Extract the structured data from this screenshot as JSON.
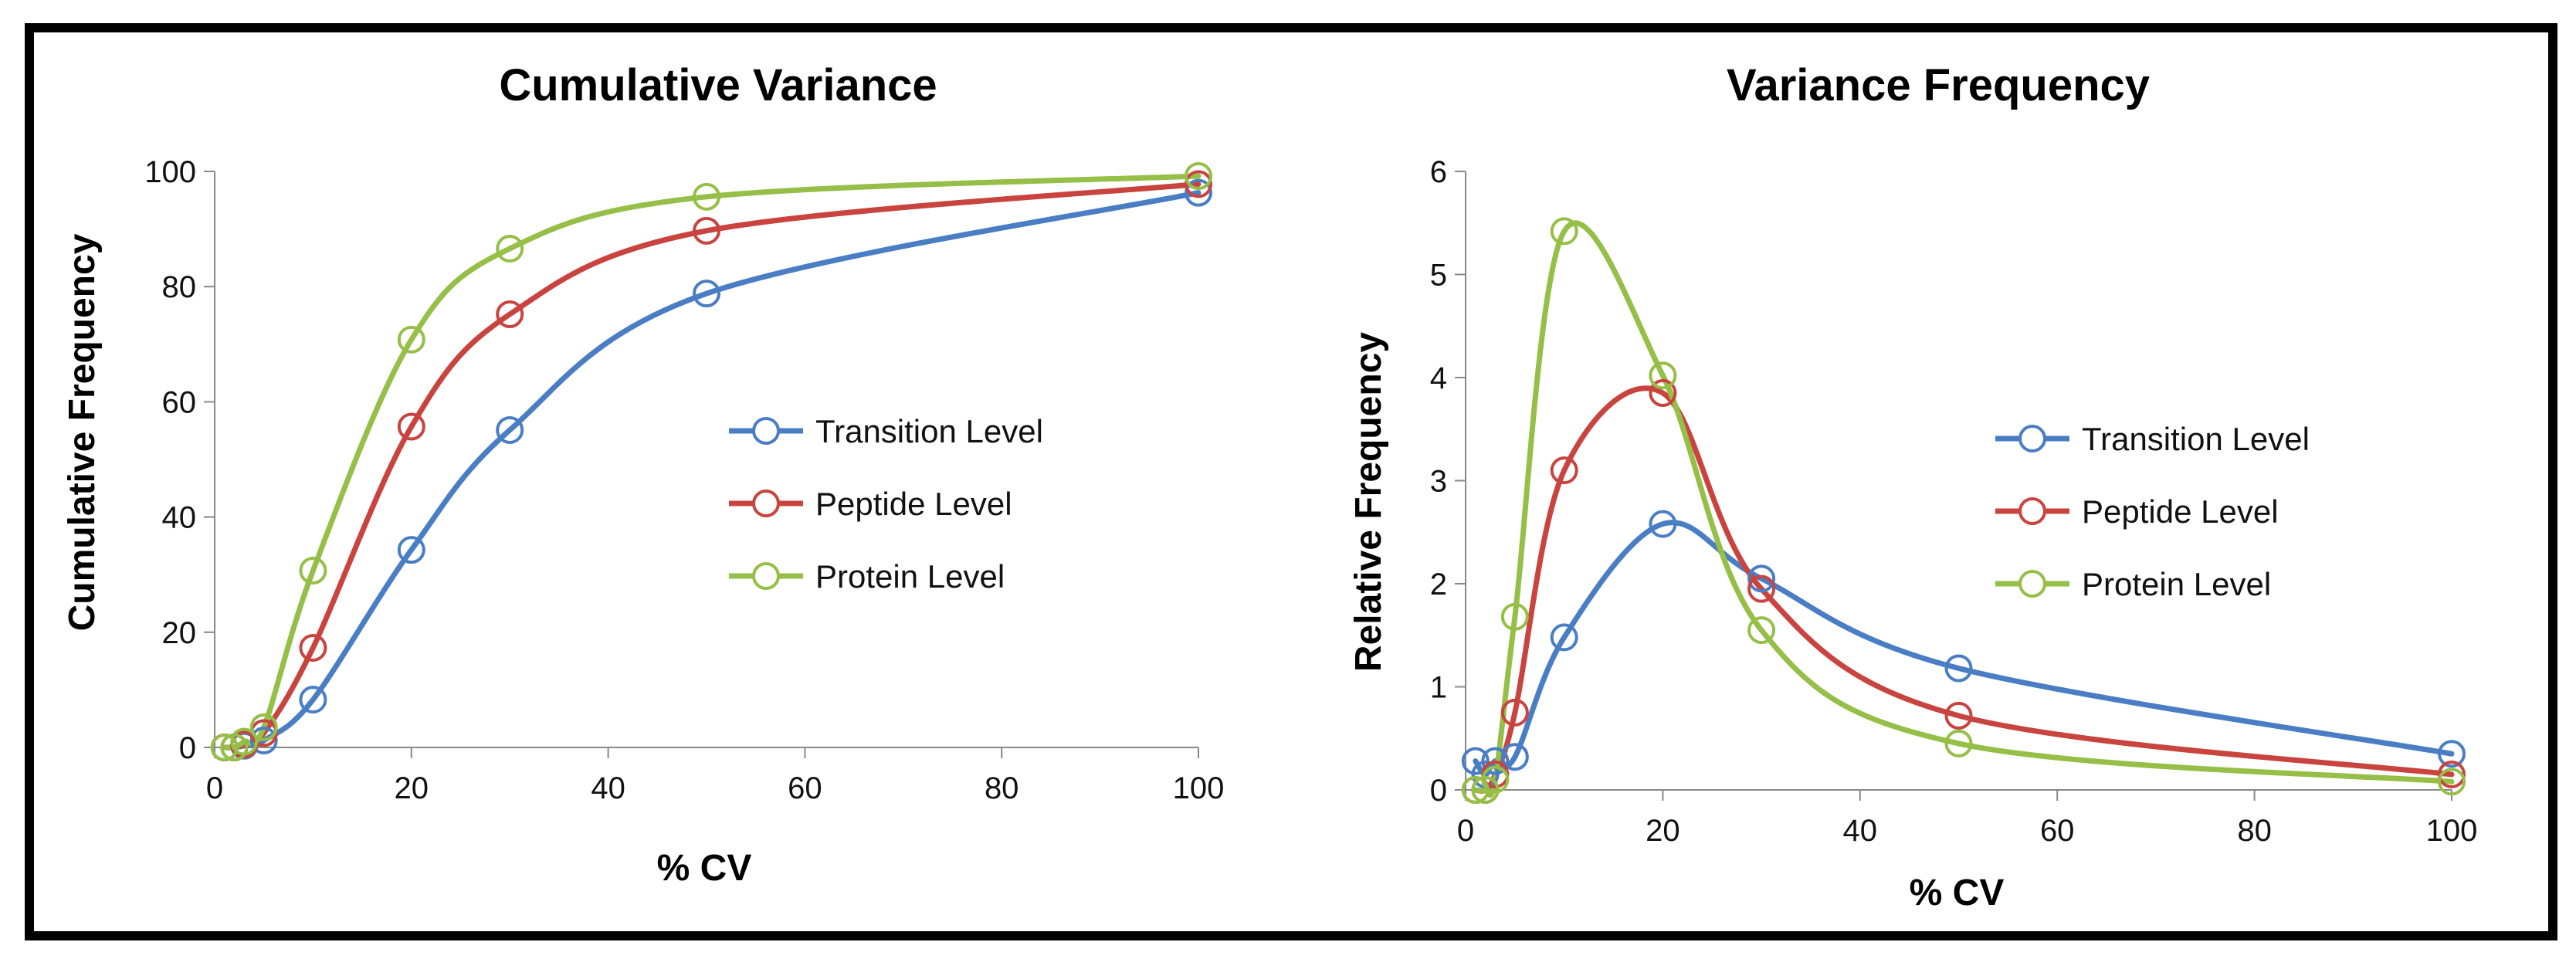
{
  "chart_data": [
    {
      "type": "line",
      "title": "Cumulative Variance",
      "xlabel": "% CV",
      "ylabel": "Cumulative Frequency",
      "xlim": [
        0,
        100
      ],
      "ylim": [
        0,
        100
      ],
      "xticks": [
        0,
        20,
        40,
        60,
        80,
        100
      ],
      "yticks": [
        0,
        20,
        40,
        60,
        80,
        100
      ],
      "xtick_labels": [
        "0",
        "20",
        "40",
        "60",
        "80",
        "100"
      ],
      "ytick_labels": [
        "0",
        "20",
        "40",
        "60",
        "80",
        "100"
      ],
      "legend_position": "right-center",
      "series": [
        {
          "name": "Transition Level",
          "color": "#4a7ec4",
          "points": [
            [
              1,
              0
            ],
            [
              2,
              0
            ],
            [
              3,
              0.3
            ],
            [
              5,
              1.2
            ],
            [
              10,
              8.3
            ],
            [
              20,
              34.3
            ],
            [
              30,
              55.1
            ],
            [
              50,
              78.8
            ],
            [
              100,
              96.3
            ]
          ]
        },
        {
          "name": "Peptide Level",
          "color": "#c9443f",
          "points": [
            [
              1,
              0
            ],
            [
              2,
              0
            ],
            [
              3,
              0.5
            ],
            [
              5,
              2.5
            ],
            [
              10,
              17.3
            ],
            [
              20,
              55.7
            ],
            [
              30,
              75.2
            ],
            [
              50,
              89.7
            ],
            [
              100,
              97.8
            ]
          ]
        },
        {
          "name": "Protein Level",
          "color": "#95bf47",
          "points": [
            [
              1,
              0
            ],
            [
              2,
              0
            ],
            [
              3,
              1
            ],
            [
              5,
              3.5
            ],
            [
              10,
              30.7
            ],
            [
              20,
              70.8
            ],
            [
              30,
              86.6
            ],
            [
              50,
              95.6
            ],
            [
              100,
              99.2
            ]
          ]
        }
      ]
    },
    {
      "type": "line",
      "title": "Variance Frequency",
      "xlabel": "% CV",
      "ylabel": "Relative Frequency",
      "xlim": [
        0,
        100
      ],
      "ylim": [
        0,
        6
      ],
      "xticks": [
        0,
        20,
        40,
        60,
        80,
        100
      ],
      "yticks": [
        0,
        1,
        2,
        3,
        4,
        5,
        6
      ],
      "xtick_labels": [
        "0",
        "20",
        "40",
        "60",
        "80",
        "100"
      ],
      "ytick_labels": [
        "0",
        "1",
        "2",
        "3",
        "4",
        "5",
        "6"
      ],
      "legend_position": "right-center",
      "series": [
        {
          "name": "Transition Level",
          "color": "#4a7ec4",
          "points": [
            [
              1,
              0.28
            ],
            [
              2,
              0.15
            ],
            [
              3,
              0.28
            ],
            [
              5,
              0.32
            ],
            [
              10,
              1.48
            ],
            [
              20,
              2.58
            ],
            [
              30,
              2.05
            ],
            [
              50,
              1.18
            ],
            [
              100,
              0.35
            ]
          ]
        },
        {
          "name": "Peptide Level",
          "color": "#c9443f",
          "points": [
            [
              1,
              0
            ],
            [
              2,
              0
            ],
            [
              3,
              0.15
            ],
            [
              5,
              0.75
            ],
            [
              10,
              3.1
            ],
            [
              20,
              3.85
            ],
            [
              30,
              1.95
            ],
            [
              50,
              0.72
            ],
            [
              100,
              0.15
            ]
          ]
        },
        {
          "name": "Protein Level",
          "color": "#95bf47",
          "points": [
            [
              1,
              0
            ],
            [
              2,
              0
            ],
            [
              3,
              0.1
            ],
            [
              5,
              1.68
            ],
            [
              10,
              5.42
            ],
            [
              20,
              4.02
            ],
            [
              30,
              1.55
            ],
            [
              50,
              0.45
            ],
            [
              100,
              0.08
            ]
          ]
        }
      ]
    }
  ]
}
